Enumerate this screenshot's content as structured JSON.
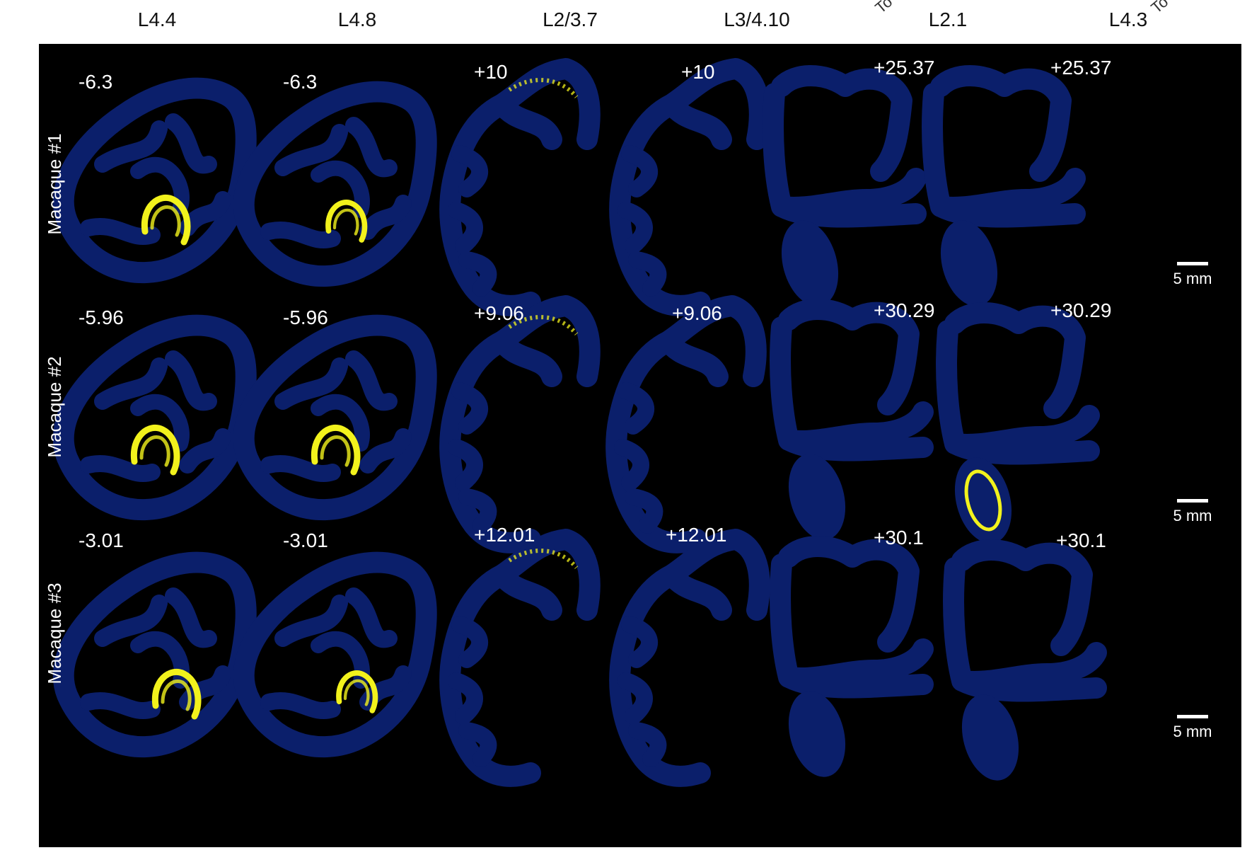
{
  "columns": [
    {
      "label": "L4.4"
    },
    {
      "label": "L4.8"
    },
    {
      "label": "L2/3.7"
    },
    {
      "label": "L3/4.10"
    },
    {
      "label": "L2.1"
    },
    {
      "label": "L4.3"
    }
  ],
  "corner_glyphs": [
    "To",
    "To"
  ],
  "rows": [
    {
      "label": "Macaque #1",
      "coords": [
        "-6.3",
        "-6.3",
        "+10",
        "+10",
        "+25.37",
        "+25.37"
      ]
    },
    {
      "label": "Macaque #2",
      "coords": [
        "-5.96",
        "-5.96",
        "+9.06",
        "+9.06",
        "+30.29",
        "+30.29"
      ]
    },
    {
      "label": "Macaque #3",
      "coords": [
        "-3.01",
        "-3.01",
        "+12.01",
        "+12.01",
        "+30.1",
        "+30.1"
      ]
    }
  ],
  "scale_bar": {
    "label": "5 mm"
  },
  "colors": {
    "background": "#000000",
    "tissue": "#0b1f6b",
    "tissue_edge": "#112a86",
    "signal": "#f2f21c"
  }
}
